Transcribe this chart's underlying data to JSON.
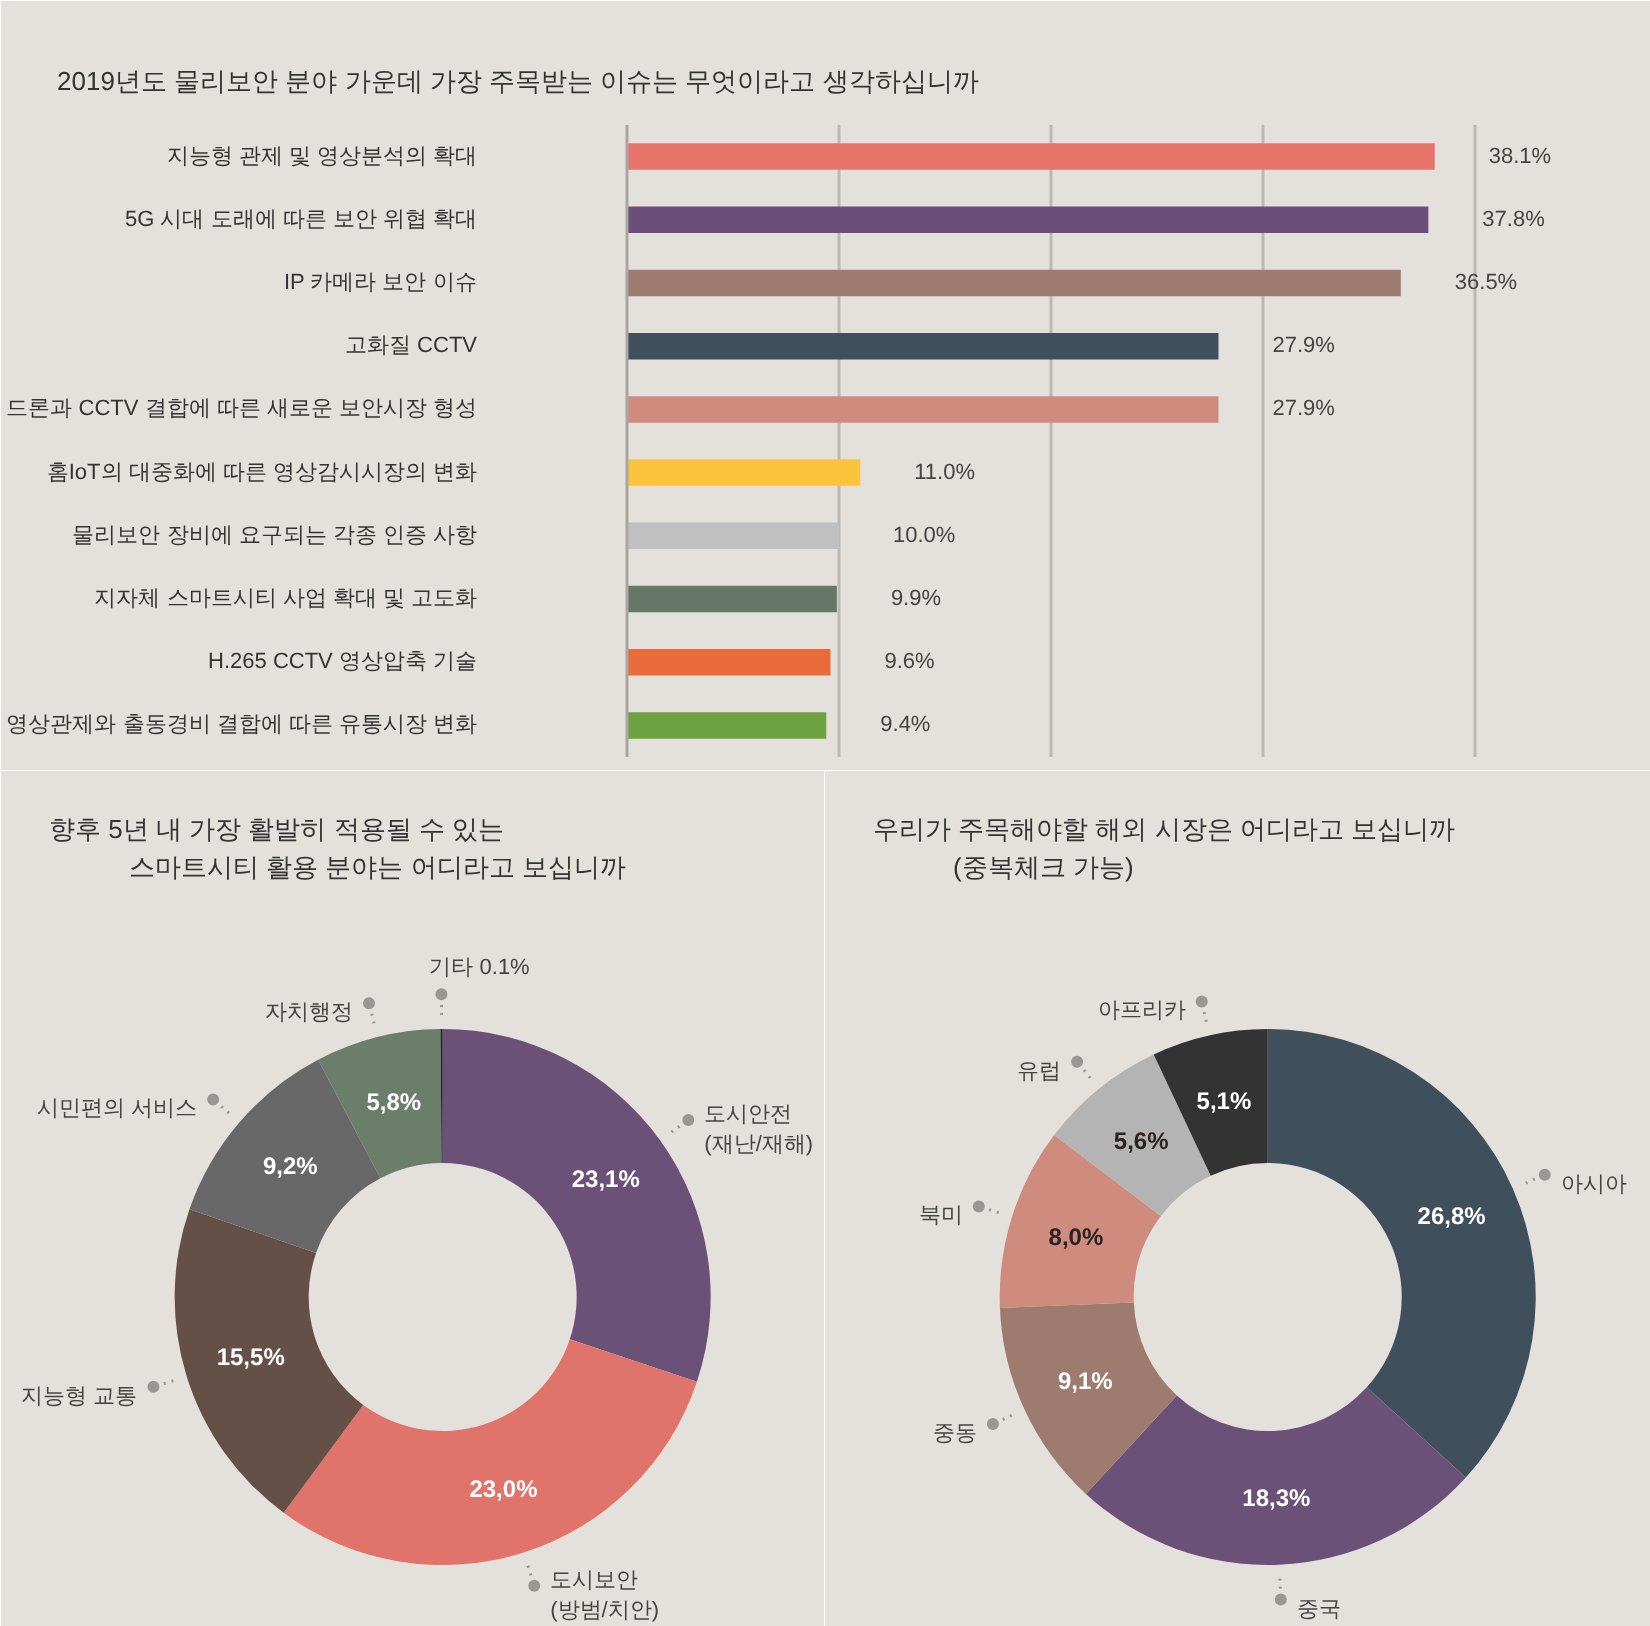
{
  "chart_data": [
    {
      "type": "bar",
      "orientation": "horizontal",
      "title": "2019년도 물리보안 분야 가운데 가장 주목받는 이슈는 무엇이라고 생각하십니까",
      "categories": [
        "지능형 관제 및 영상분석의 확대",
        "5G 시대 도래에 따른 보안 위협 확대",
        "IP 카메라 보안 이슈",
        "고화질 CCTV",
        "드론과 CCTV 결합에 따른 새로운 보안시장 형성",
        "홈IoT의 대중화에 따른 영상감시시장의 변화",
        "물리보안 장비에 요구되는 각종 인증 사항",
        "지자체 스마트시티 사업 확대 및 고도화",
        "H.265 CCTV 영상압축 기술",
        "영상관제와 출동경비 결합에 따른 유통시장 변화"
      ],
      "values": [
        38.1,
        37.8,
        36.5,
        27.9,
        27.9,
        11.0,
        10.0,
        9.9,
        9.6,
        9.4
      ],
      "colors": [
        "#e8736b",
        "#6b4f7a",
        "#9e7b6f",
        "#404f5c",
        "#cf8b7e",
        "#fcc33c",
        "#c0c0c0",
        "#66776a",
        "#e96b39",
        "#6ea13f"
      ],
      "value_labels": [
        "38.1%",
        "37.8%",
        "36.5%",
        "27.9%",
        "27.9%",
        "11.0%",
        "10.0%",
        "9.9%",
        "9.6%",
        "9.4%"
      ],
      "xlim": [
        0,
        45
      ],
      "xticks": [
        {
          "value": 10,
          "label": null
        },
        {
          "value": 20,
          "label": null
        },
        {
          "value": 30,
          "label": null
        },
        {
          "value": 40,
          "label": null
        }
      ],
      "grid": "x",
      "tick_labels": "y"
    },
    {
      "type": "donut",
      "title": "향후 5년 내 가장 활발히 적용될 수 있는\n스마트시티 활용 분야는 어디라고 보십니까",
      "categories": [
        "도시안전\n(재난/재해)",
        "도시보안\n(방범/치안)",
        "지능형 교통",
        "시민편의 서비스",
        "자치행정",
        "기타"
      ],
      "values": [
        23.1,
        23.0,
        15.5,
        9.2,
        5.8,
        0.1
      ],
      "colors": [
        "#6b5078",
        "#e0736a",
        "#645047",
        "#686868",
        "#6b7d6b",
        "#222222"
      ],
      "value_labels": [
        "23,1%",
        "23,0%",
        "15,5%",
        "9,2%",
        "5,8%",
        "0.1%"
      ]
    },
    {
      "type": "donut",
      "title": "우리가 주목해야할 해외 시장은 어디라고 보십니까\n(중복체크 가능)",
      "categories": [
        "아시아",
        "중국",
        "중동",
        "북미",
        "유럽",
        "아프리카"
      ],
      "values": [
        26.8,
        18.3,
        9.1,
        8.0,
        5.6,
        5.1
      ],
      "colors": [
        "#404f5c",
        "#6b5078",
        "#9e7b6f",
        "#cf8b7e",
        "#b4b4b4",
        "#333333"
      ],
      "value_labels": [
        "26,8%",
        "18,3%",
        "9,1%",
        "8,0%",
        "5,6%",
        "5,1%"
      ]
    }
  ]
}
